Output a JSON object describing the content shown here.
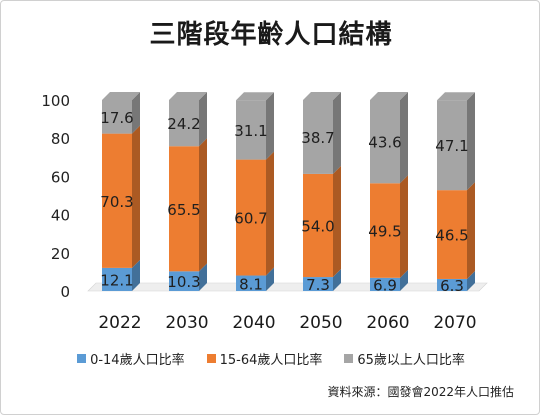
{
  "chart_data": {
    "type": "bar",
    "stacked": true,
    "title": "三階段年齡人口結構",
    "categories": [
      "2022",
      "2030",
      "2040",
      "2050",
      "2060",
      "2070"
    ],
    "series": [
      {
        "name": "0-14歲人口比率",
        "color": "#5b9bd5",
        "values": [
          12.1,
          10.3,
          8.1,
          7.3,
          6.9,
          6.3
        ]
      },
      {
        "name": "15-64歲人口比率",
        "color": "#ed7d31",
        "values": [
          70.3,
          65.5,
          60.7,
          54.0,
          49.5,
          46.5
        ]
      },
      {
        "name": "65歲以上人口比率",
        "color": "#a5a5a5",
        "values": [
          17.6,
          24.2,
          31.1,
          38.7,
          43.6,
          47.1
        ]
      }
    ],
    "value_labels": [
      [
        "12.1",
        "10.3",
        "8.1",
        "7.3",
        "6.9",
        "6.3"
      ],
      [
        "70.3",
        "65.5",
        "60.7",
        "54.0",
        "49.5",
        "46.5"
      ],
      [
        "17.6",
        "24.2",
        "31.1",
        "38.7",
        "43.6",
        "47.1"
      ]
    ],
    "yticks": [
      "0",
      "20",
      "40",
      "60",
      "80",
      "100"
    ],
    "ylim": [
      0,
      100
    ],
    "grid": false,
    "legend_position": "bottom",
    "style": "3d-column"
  },
  "source_note": "資料來源：國發會2022年人口推估"
}
